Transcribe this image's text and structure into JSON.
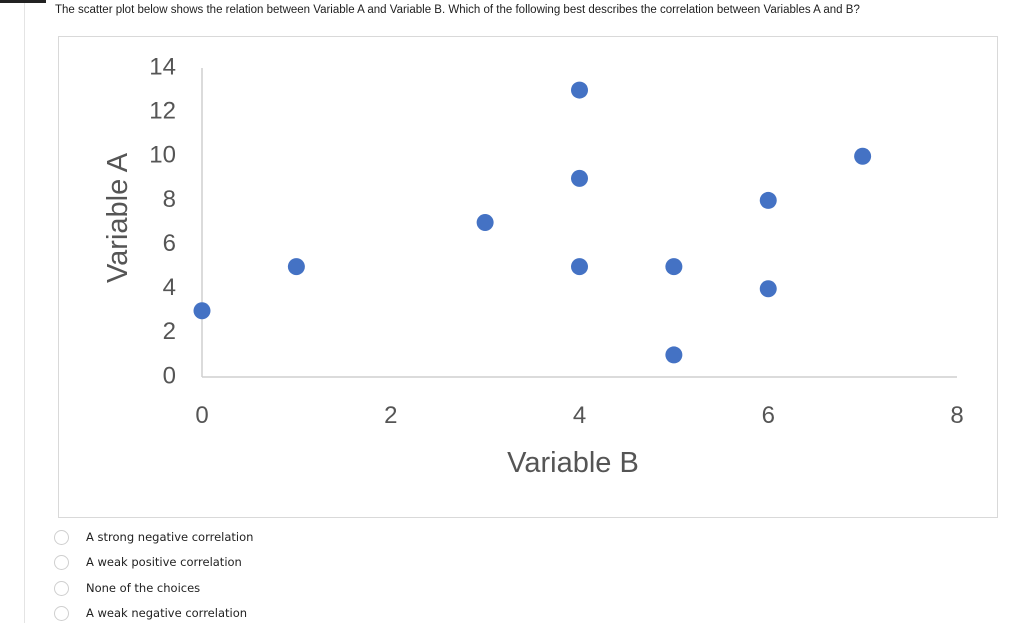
{
  "question": {
    "text": "The scatter plot below shows the relation between Variable A and Variable B. Which of the following best describes the correlation between Variables A and B?"
  },
  "chart_data": {
    "type": "scatter",
    "title": "",
    "xlabel": "Variable B",
    "ylabel": "Variable A",
    "xlim": [
      0,
      8
    ],
    "ylim": [
      0,
      14
    ],
    "x_ticks": [
      "0",
      "2",
      "4",
      "6",
      "8"
    ],
    "y_ticks": [
      "0",
      "2",
      "4",
      "6",
      "8",
      "10",
      "12",
      "14"
    ],
    "grid": false,
    "point_color": "#4472C4",
    "points": [
      {
        "x": 0,
        "y": 3
      },
      {
        "x": 1,
        "y": 5
      },
      {
        "x": 3,
        "y": 7
      },
      {
        "x": 4,
        "y": 13
      },
      {
        "x": 4,
        "y": 9
      },
      {
        "x": 4,
        "y": 5
      },
      {
        "x": 5,
        "y": 5
      },
      {
        "x": 5,
        "y": 1
      },
      {
        "x": 6,
        "y": 8
      },
      {
        "x": 6,
        "y": 4
      },
      {
        "x": 7,
        "y": 10
      }
    ]
  },
  "choices": [
    {
      "label": "A strong negative correlation"
    },
    {
      "label": "A weak positive correlation"
    },
    {
      "label": "None of the choices"
    },
    {
      "label": "A weak negative correlation"
    }
  ]
}
